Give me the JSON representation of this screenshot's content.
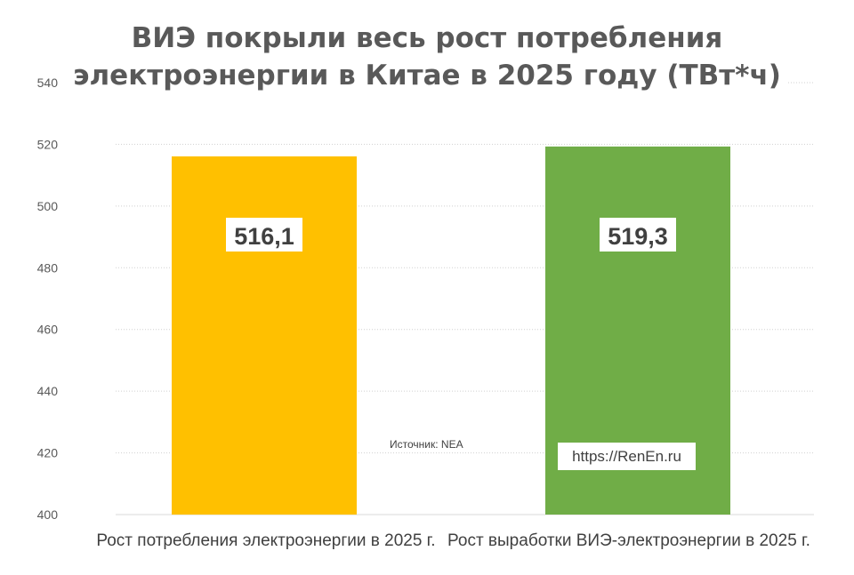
{
  "chart_data": {
    "type": "bar",
    "title": "ВИЭ покрыли весь рост потребления электроэнергии в Китае в 2025 году (ТВт*ч)",
    "title_lines": [
      "ВИЭ покрыли весь рост потребления",
      "электроэнергии в Китае в 2025 году (ТВт*ч)"
    ],
    "categories": [
      "Рост потребления электроэнергии в 2025 г.",
      "Рост выработки ВИЭ-электроэнергии в 2025 г."
    ],
    "values": [
      516.1,
      519.3
    ],
    "data_labels": [
      "516,1",
      "519,3"
    ],
    "colors": [
      "#FFC000",
      "#70AD47"
    ],
    "ylim": [
      400,
      540
    ],
    "yticks": [
      "400",
      "420",
      "440",
      "460",
      "480",
      "500",
      "520",
      "540"
    ],
    "grid": true,
    "xlabel": "",
    "ylabel": ""
  },
  "source": "Источник: NEA",
  "website": "https://RenEn.ru"
}
